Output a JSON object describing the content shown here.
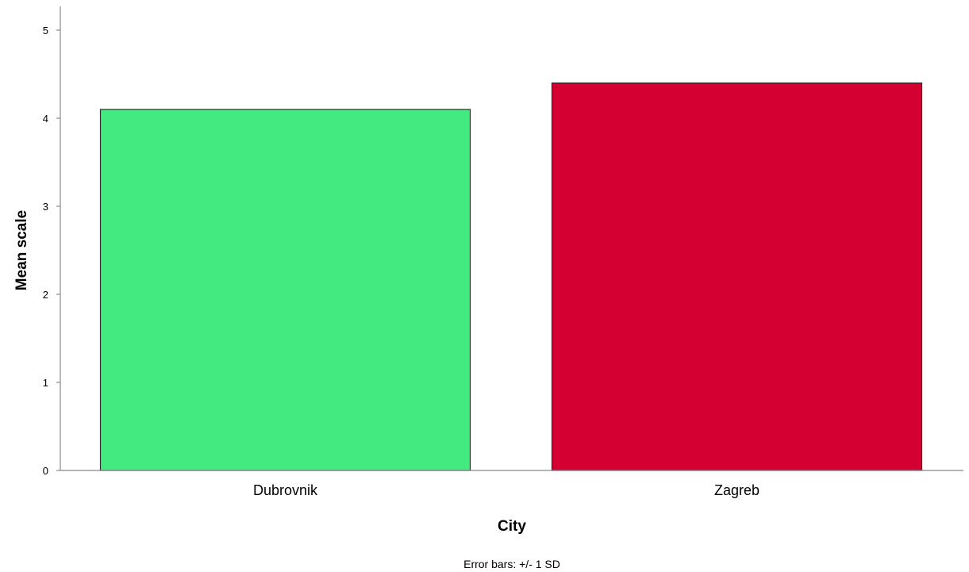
{
  "chart_data": {
    "type": "bar",
    "categories": [
      "Dubrovnik",
      "Zagreb"
    ],
    "values": [
      4.1,
      4.4
    ],
    "colors": [
      "#43EA7F",
      "#D50032"
    ],
    "xlabel": "City",
    "ylabel": "Mean scale",
    "ylim": [
      0,
      5
    ],
    "yticks": [
      0,
      1,
      2,
      3,
      4,
      5
    ],
    "grid": false,
    "legend": "none"
  },
  "footnote": "Error bars: +/- 1 SD"
}
